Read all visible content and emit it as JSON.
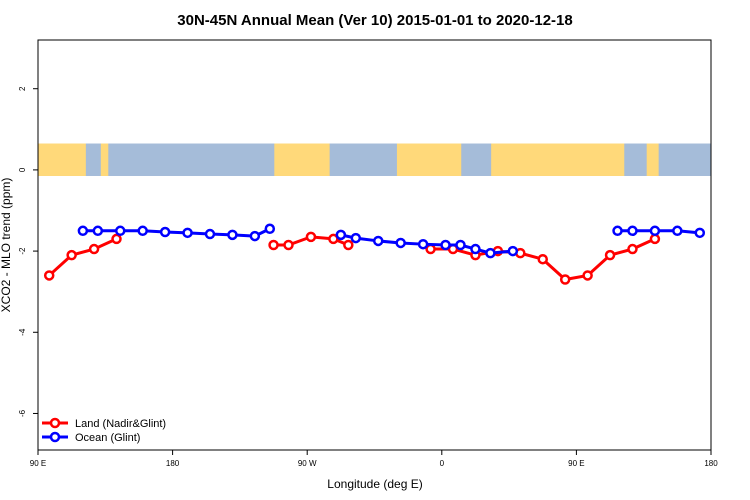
{
  "chart_data": {
    "type": "line",
    "title": "30N-45N Annual Mean (Ver 10)   2015-01-01 to 2020-12-18",
    "xlabel": "Longitude (deg E)",
    "ylabel": "XCO2 - MLO trend (ppm)",
    "x_axis_order": [
      "90 E",
      "180",
      "90 W",
      "0",
      "90 E",
      "180"
    ],
    "x_tick_labels": [
      "90 E",
      "180",
      "90 W",
      "0",
      "90 E",
      "180"
    ],
    "x_tick_values": [
      90,
      180,
      270,
      360,
      450,
      540
    ],
    "xlim": [
      90,
      540
    ],
    "y_tick_values": [
      -6,
      -4,
      -2,
      0,
      2
    ],
    "y_tick_labels": [
      "-6",
      "-4",
      "-2",
      "0",
      "2"
    ],
    "ylim": [
      -6.9,
      3.2
    ],
    "grid": false,
    "legend_position": "bottom-left",
    "background_map_band": {
      "y_range": [
        -0.15,
        0.65
      ],
      "land_color": "#ffd97a",
      "ocean_color": "#a5bcd9"
    },
    "series": [
      {
        "name": "Land (Nadir&Glint)",
        "color": "#ff0000",
        "segments": [
          [
            [
              97.5,
              -2.6
            ],
            [
              112.5,
              -2.1
            ],
            [
              127.5,
              -1.95
            ],
            [
              142.5,
              -1.7
            ]
          ],
          [
            [
              247.5,
              -1.85
            ],
            [
              257.5,
              -1.85
            ],
            [
              272.5,
              -1.65
            ],
            [
              287.5,
              -1.7
            ],
            [
              297.5,
              -1.85
            ]
          ],
          [
            [
              352.5,
              -1.95
            ],
            [
              367.5,
              -1.95
            ],
            [
              382.5,
              -2.1
            ],
            [
              397.5,
              -2.0
            ],
            [
              412.5,
              -2.05
            ],
            [
              427.5,
              -2.2
            ],
            [
              442.5,
              -2.7
            ],
            [
              457.5,
              -2.6
            ],
            [
              472.5,
              -2.1
            ],
            [
              487.5,
              -1.95
            ],
            [
              502.5,
              -1.7
            ]
          ]
        ]
      },
      {
        "name": "Ocean (Glint)",
        "color": "#0000ff",
        "segments": [
          [
            [
              120,
              -1.5
            ],
            [
              130,
              -1.5
            ],
            [
              145,
              -1.5
            ],
            [
              160,
              -1.5
            ],
            [
              175,
              -1.53
            ],
            [
              190,
              -1.55
            ],
            [
              205,
              -1.58
            ],
            [
              220,
              -1.6
            ],
            [
              235,
              -1.63
            ],
            [
              245,
              -1.45
            ]
          ],
          [
            [
              292.5,
              -1.6
            ],
            [
              302.5,
              -1.68
            ],
            [
              317.5,
              -1.75
            ],
            [
              332.5,
              -1.8
            ],
            [
              347.5,
              -1.83
            ],
            [
              362.5,
              -1.85
            ],
            [
              372.5,
              -1.85
            ],
            [
              382.5,
              -1.95
            ],
            [
              392.5,
              -2.05
            ],
            [
              407.5,
              -2.0
            ]
          ],
          [
            [
              477.5,
              -1.5
            ],
            [
              487.5,
              -1.5
            ],
            [
              502.5,
              -1.5
            ],
            [
              517.5,
              -1.5
            ],
            [
              532.5,
              -1.55
            ]
          ]
        ]
      }
    ]
  }
}
